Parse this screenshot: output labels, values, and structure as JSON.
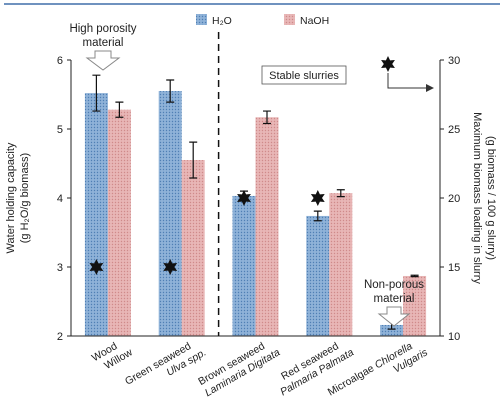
{
  "chart_data": {
    "type": "bar",
    "categories": [
      {
        "line1": "Wood",
        "line2": "Willow",
        "line2_italic": false
      },
      {
        "line1": "Green seaweed",
        "line2": "Ulva spp.",
        "line2_italic": true
      },
      {
        "line1": "Brown seaweed",
        "line2": "Laminaria Digitata",
        "line2_italic": true
      },
      {
        "line1": "Red seaweed",
        "line2": "Palmaria Palmata",
        "line2_italic": true
      },
      {
        "line1": "Microalgae",
        "line1_italic_suffix": "Chlorella",
        "line2": "Vulgaris",
        "line2_italic": true
      }
    ],
    "series": [
      {
        "name": "H₂O",
        "color": "#7fa6cf",
        "values": [
          5.52,
          5.55,
          4.03,
          3.74,
          2.16
        ],
        "errors": [
          0.26,
          0.16,
          0.07,
          0.07,
          0.06
        ]
      },
      {
        "name": "NaOH",
        "color": "#e3aaaa",
        "values": [
          5.28,
          4.55,
          5.17,
          4.07,
          2.87
        ],
        "errors": [
          0.11,
          0.26,
          0.09,
          0.05,
          0.01
        ]
      }
    ],
    "ylabel": "Water holding capacity (g H₂O/g biomass)",
    "ylabel_line1": "Water holding capacity",
    "ylabel_line2": "(g H₂O/g biomass)",
    "ylim": [
      2,
      6
    ],
    "yticks": [
      2,
      3,
      4,
      5,
      6
    ],
    "y2label_line1": "Maximum biomass loading in slurry",
    "y2label_line2": "(g biomass / 100 g slurry)",
    "y2lim": [
      10,
      30
    ],
    "y2ticks": [
      10,
      15,
      20,
      25,
      30
    ],
    "max_loading_markers": [
      {
        "category_index": 0,
        "value": 15
      },
      {
        "category_index": 1,
        "value": 15
      },
      {
        "category_index": 2,
        "value": 20
      },
      {
        "category_index": 3,
        "value": 20
      }
    ],
    "legend_placement": "top-center",
    "annotations": {
      "high_porosity_line1": "High porosity",
      "high_porosity_line2": "material",
      "stable_slurries": "Stable slurries",
      "non_porous_line1": "Non-porous",
      "non_porous_line2": "material"
    },
    "divider_after_category": 1,
    "grid": false
  }
}
